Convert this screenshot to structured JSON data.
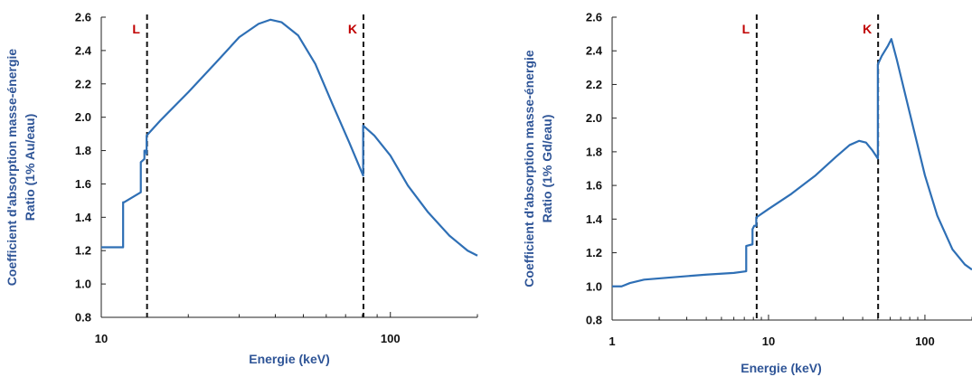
{
  "chart_data": [
    {
      "type": "line",
      "xscale": "log",
      "xlim": [
        10,
        200
      ],
      "ylim": [
        0.8,
        2.6
      ],
      "yticks": [
        "0.8",
        "1.0",
        "1.2",
        "1.4",
        "1.6",
        "1.8",
        "2.0",
        "2.2",
        "2.4",
        "2.6"
      ],
      "xticks": [
        {
          "value": 10,
          "label": "10"
        },
        {
          "value": 100,
          "label": "100"
        }
      ],
      "xlabel": "Energie (keV)",
      "ylabel": [
        "Coefficient d'absorption masse-énergie",
        "Ratio (1% Au/eau)"
      ],
      "grid": false,
      "line_color": "#2e6fb5",
      "edges": [
        {
          "label": "L",
          "x": 14.4
        },
        {
          "label": "K",
          "x": 80.7
        }
      ],
      "series": [
        {
          "points": [
            [
              10,
              1.22
            ],
            [
              11.9,
              1.22
            ],
            [
              11.9,
              1.49
            ],
            [
              12.0,
              1.49
            ],
            [
              13.7,
              1.55
            ],
            [
              13.7,
              1.73
            ],
            [
              14.1,
              1.75
            ],
            [
              14.1,
              1.8
            ],
            [
              14.3,
              1.8
            ],
            [
              14.35,
              1.78
            ],
            [
              14.35,
              1.89
            ],
            [
              16,
              1.98
            ],
            [
              20,
              2.15
            ],
            [
              25,
              2.33
            ],
            [
              30,
              2.48
            ],
            [
              35,
              2.56
            ],
            [
              38.5,
              2.585
            ],
            [
              42,
              2.57
            ],
            [
              48,
              2.49
            ],
            [
              55,
              2.32
            ],
            [
              63,
              2.08
            ],
            [
              72,
              1.85
            ],
            [
              80.5,
              1.65
            ],
            [
              80.5,
              1.95
            ],
            [
              88,
              1.89
            ],
            [
              100,
              1.77
            ],
            [
              115,
              1.59
            ],
            [
              135,
              1.43
            ],
            [
              160,
              1.29
            ],
            [
              185,
              1.2
            ],
            [
              200,
              1.17
            ]
          ]
        }
      ]
    },
    {
      "type": "line",
      "xscale": "log",
      "xlim": [
        1,
        200
      ],
      "ylim": [
        0.8,
        2.6
      ],
      "yticks": [
        "0.8",
        "1.0",
        "1.2",
        "1.4",
        "1.6",
        "1.8",
        "2.0",
        "2.2",
        "2.4",
        "2.6"
      ],
      "xticks": [
        {
          "value": 1,
          "label": "1"
        },
        {
          "value": 10,
          "label": "10"
        },
        {
          "value": 100,
          "label": "100"
        }
      ],
      "xlabel": "Energie (keV)",
      "ylabel": [
        "Coefficient d'absorption masse-énergie",
        "Ratio (1% Gd/eau)"
      ],
      "grid": false,
      "line_color": "#2e6fb5",
      "edges": [
        {
          "label": "L",
          "x": 8.4
        },
        {
          "label": "K",
          "x": 50.2
        }
      ],
      "series": [
        {
          "points": [
            [
              1,
              1.0
            ],
            [
              1.15,
              1.0
            ],
            [
              1.3,
              1.02
            ],
            [
              1.6,
              1.04
            ],
            [
              2.5,
              1.055
            ],
            [
              4,
              1.07
            ],
            [
              6,
              1.08
            ],
            [
              7.2,
              1.09
            ],
            [
              7.2,
              1.24
            ],
            [
              7.9,
              1.25
            ],
            [
              7.9,
              1.34
            ],
            [
              8.1,
              1.36
            ],
            [
              8.35,
              1.36
            ],
            [
              8.35,
              1.41
            ],
            [
              10,
              1.46
            ],
            [
              14,
              1.55
            ],
            [
              20,
              1.66
            ],
            [
              27,
              1.77
            ],
            [
              33,
              1.84
            ],
            [
              38,
              1.865
            ],
            [
              42,
              1.855
            ],
            [
              46,
              1.81
            ],
            [
              50,
              1.76
            ],
            [
              50,
              2.32
            ],
            [
              53,
              2.37
            ],
            [
              58,
              2.43
            ],
            [
              61,
              2.47
            ],
            [
              66,
              2.35
            ],
            [
              80,
              2.03
            ],
            [
              100,
              1.66
            ],
            [
              120,
              1.42
            ],
            [
              150,
              1.22
            ],
            [
              180,
              1.13
            ],
            [
              200,
              1.1
            ]
          ]
        }
      ]
    }
  ]
}
